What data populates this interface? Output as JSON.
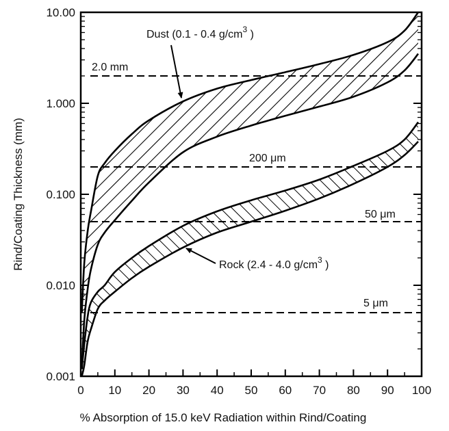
{
  "chart_data": {
    "type": "area",
    "xlabel": "% Absorption of 15.0 keV Radiation within Rind/Coating",
    "ylabel": "Rind/Coating Thickness  (mm)",
    "xlim": [
      0,
      100
    ],
    "ylim": [
      0.001,
      10
    ],
    "y_scale": "log",
    "x_ticks": [
      0,
      10,
      20,
      30,
      40,
      50,
      60,
      70,
      80,
      90,
      100
    ],
    "x_tick_labels": [
      "0",
      "10",
      "20",
      "30",
      "40",
      "50",
      "60",
      "70",
      "80",
      "90",
      "100"
    ],
    "y_ticks": [
      0.001,
      0.01,
      0.1,
      1,
      10
    ],
    "y_tick_labels": [
      "0.001",
      "0.010",
      "0.100",
      "1.000",
      "10.00"
    ],
    "grid": false,
    "series": [
      {
        "name": "Dust (0.1 - 0.4 g/cm³)",
        "x": [
          0.3,
          1,
          2,
          3,
          5,
          7,
          10,
          15,
          20,
          30,
          40,
          50,
          60,
          70,
          80,
          90,
          95,
          99
        ],
        "upper": [
          0.005,
          0.017,
          0.039,
          0.065,
          0.16,
          0.22,
          0.3,
          0.46,
          0.65,
          1.05,
          1.45,
          1.8,
          2.2,
          2.7,
          3.4,
          4.7,
          6.3,
          10.0
        ],
        "lower": [
          0.0012,
          0.004,
          0.009,
          0.015,
          0.028,
          0.038,
          0.052,
          0.085,
          0.135,
          0.29,
          0.43,
          0.57,
          0.73,
          0.92,
          1.18,
          1.7,
          2.3,
          3.5
        ]
      },
      {
        "name": "Rock (2.4 - 4.0 g/cm³)",
        "x": [
          0.3,
          1,
          2,
          3,
          5,
          7,
          10,
          15,
          20,
          30,
          40,
          50,
          60,
          70,
          80,
          90,
          95,
          99
        ],
        "upper": [
          0.0012,
          0.0022,
          0.0045,
          0.0065,
          0.0085,
          0.01,
          0.014,
          0.02,
          0.027,
          0.045,
          0.065,
          0.086,
          0.11,
          0.145,
          0.205,
          0.3,
          0.4,
          0.62
        ],
        "lower": [
          0.001,
          0.0013,
          0.0024,
          0.0033,
          0.0055,
          0.0068,
          0.0085,
          0.012,
          0.016,
          0.026,
          0.038,
          0.05,
          0.066,
          0.09,
          0.13,
          0.2,
          0.27,
          0.38
        ]
      }
    ],
    "reference_lines": [
      {
        "label": "2.0 mm",
        "y": 2.0
      },
      {
        "label": "200 μm",
        "y": 0.2
      },
      {
        "label": "50 μm",
        "y": 0.05
      },
      {
        "label": "5 μm",
        "y": 0.005
      }
    ],
    "annotations": {
      "dust": {
        "text": "Dust  (0.1 - 0.4 g/cm",
        "sup": "3",
        "tail": " )"
      },
      "rock": {
        "text": "Rock (2.4 - 4.0 g/cm",
        "sup": "3",
        "tail": " )"
      }
    }
  }
}
